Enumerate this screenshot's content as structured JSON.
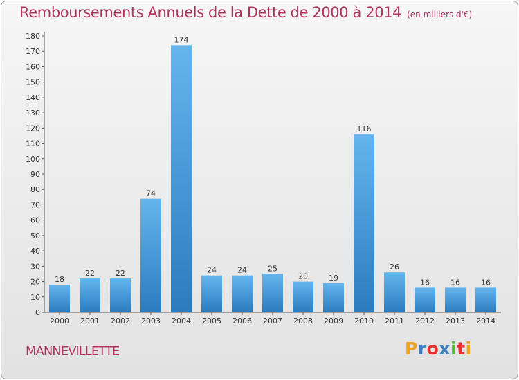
{
  "title": "Remboursements Annuels de la Dette de 2000 à 2014",
  "subtitle": "(en milliers d'€)",
  "place": "MANNEVILLETTE",
  "logo": {
    "text": "Proxiti",
    "colors": [
      "#f0a21c",
      "#3a7fc0",
      "#e3302c",
      "#3a7fc0",
      "#5cb83c",
      "#e3302c",
      "#f0a21c"
    ]
  },
  "colors": {
    "bar_light": "#64b5ee",
    "bar_dark": "#2a7cbf",
    "title": "#b0355e",
    "grid": "#c8c8c8"
  },
  "chart_data": {
    "type": "bar",
    "title": "Remboursements Annuels de la Dette de 2000 à 2014",
    "subtitle": "(en milliers d'€)",
    "xlabel": "",
    "ylabel": "",
    "categories": [
      "2000",
      "2001",
      "2002",
      "2003",
      "2004",
      "2005",
      "2006",
      "2007",
      "2008",
      "2009",
      "2010",
      "2011",
      "2012",
      "2013",
      "2014"
    ],
    "values": [
      18,
      22,
      22,
      74,
      174,
      24,
      24,
      25,
      20,
      19,
      116,
      26,
      16,
      16,
      16
    ],
    "ylim": [
      0,
      180
    ],
    "yticks": [
      0,
      10,
      20,
      30,
      40,
      50,
      60,
      70,
      80,
      90,
      100,
      110,
      120,
      130,
      140,
      150,
      160,
      170,
      180
    ],
    "grid": false,
    "data_labels": true
  }
}
